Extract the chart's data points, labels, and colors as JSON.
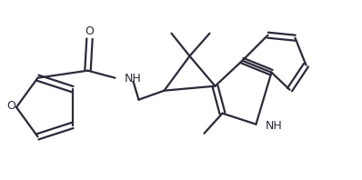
{
  "background_color": "#ffffff",
  "line_color": "#2a2a3a",
  "line_width": 1.6,
  "figsize": [
    3.98,
    1.98
  ],
  "dpi": 100,
  "xlim": [
    0,
    398
  ],
  "ylim": [
    0,
    198
  ]
}
